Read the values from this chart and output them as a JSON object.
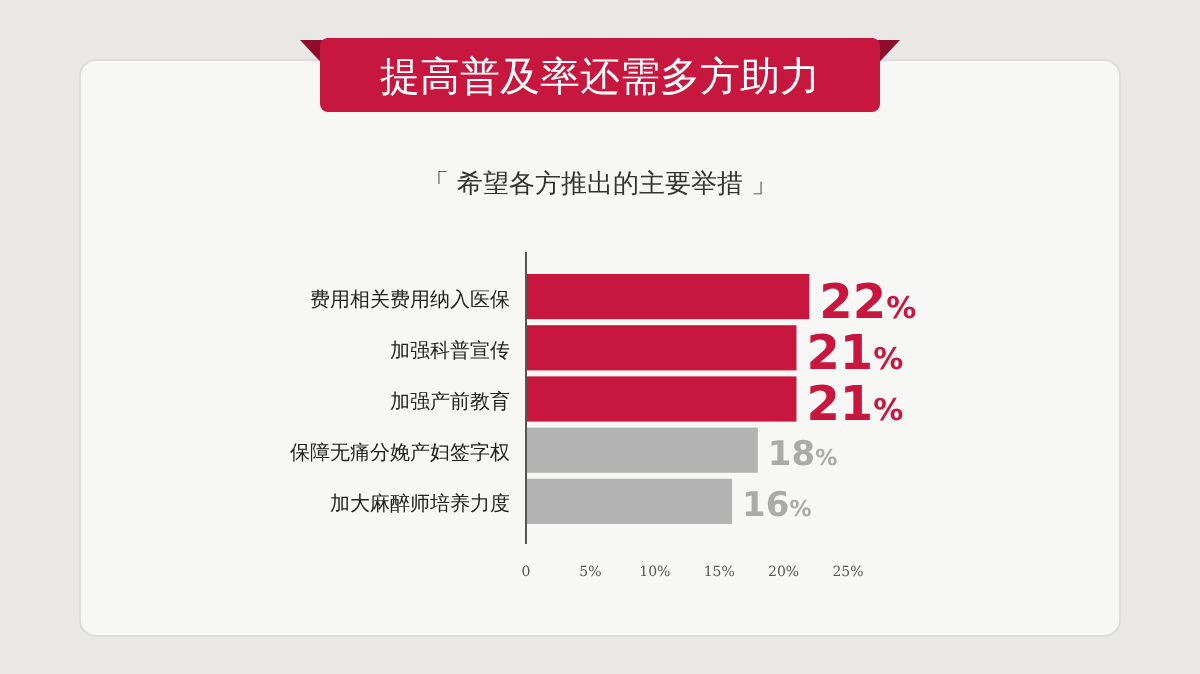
{
  "chart_data": {
    "type": "bar",
    "orientation": "horizontal",
    "title": "提高普及率还需多方助力",
    "subtitle": "「 希望各方推出的主要举措 」",
    "categories": [
      "费用相关费用纳入医保",
      "加强科普宣传",
      "加强产前教育",
      "保障无痛分娩产妇签字权",
      "加大麻醉师培养力度"
    ],
    "values": [
      22,
      21,
      21,
      18,
      16
    ],
    "colors": [
      "#c8173f",
      "#c8173f",
      "#c8173f",
      "#b3b3b3",
      "#b3b3b3"
    ],
    "value_labels": [
      "22%",
      "21%",
      "21%",
      "18%",
      "16%"
    ],
    "xlim": [
      0,
      25
    ],
    "xticks": [
      0,
      {
        "value": 5,
        "label": "5%"
      },
      {
        "value": 10,
        "label": "10%"
      },
      {
        "value": 15,
        "label": "15%"
      },
      {
        "value": 20,
        "label": "20%"
      },
      {
        "value": 25,
        "label": "25%"
      }
    ],
    "grid": false
  }
}
